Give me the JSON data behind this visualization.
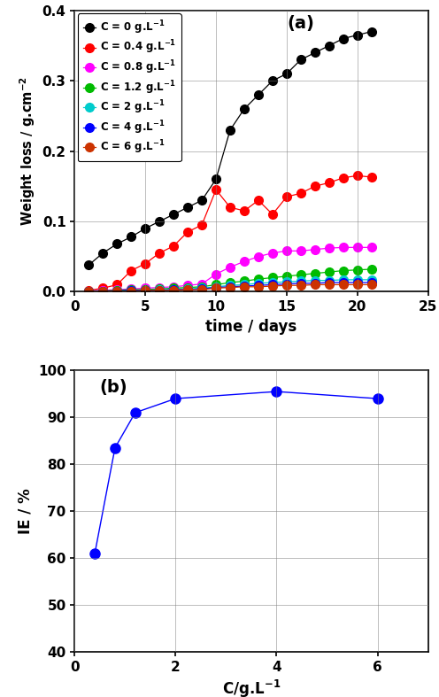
{
  "plot_a": {
    "title": "(a)",
    "xlabel": "time / days",
    "ylabel": "Weight loss / g.cm$^{-2}$",
    "xlim": [
      0,
      25
    ],
    "ylim": [
      0,
      0.4
    ],
    "yticks": [
      0.0,
      0.1,
      0.2,
      0.3,
      0.4
    ],
    "xticks": [
      0,
      5,
      10,
      15,
      20,
      25
    ],
    "series": [
      {
        "label": "C = 0 g.L$^{-1}$",
        "color": "#000000",
        "x": [
          1,
          2,
          3,
          4,
          5,
          6,
          7,
          8,
          9,
          10,
          11,
          12,
          13,
          14,
          15,
          16,
          17,
          18,
          19,
          20,
          21
        ],
        "y": [
          0.038,
          0.055,
          0.068,
          0.078,
          0.09,
          0.1,
          0.11,
          0.12,
          0.13,
          0.16,
          0.23,
          0.26,
          0.28,
          0.3,
          0.31,
          0.33,
          0.34,
          0.35,
          0.36,
          0.365,
          0.37
        ]
      },
      {
        "label": "C = 0.4 g.L$^{-1}$",
        "color": "#ff0000",
        "x": [
          1,
          2,
          3,
          4,
          5,
          6,
          7,
          8,
          9,
          10,
          11,
          12,
          13,
          14,
          15,
          16,
          17,
          18,
          19,
          20,
          21
        ],
        "y": [
          0.002,
          0.005,
          0.01,
          0.03,
          0.04,
          0.055,
          0.065,
          0.085,
          0.095,
          0.145,
          0.12,
          0.115,
          0.13,
          0.11,
          0.135,
          0.14,
          0.15,
          0.155,
          0.162,
          0.165,
          0.163
        ]
      },
      {
        "label": "C = 0.8 g.L$^{-1}$",
        "color": "#ff00ff",
        "x": [
          1,
          2,
          3,
          4,
          5,
          6,
          7,
          8,
          9,
          10,
          11,
          12,
          13,
          14,
          15,
          16,
          17,
          18,
          19,
          20,
          21
        ],
        "y": [
          0.001,
          0.002,
          0.003,
          0.004,
          0.005,
          0.006,
          0.007,
          0.009,
          0.011,
          0.025,
          0.035,
          0.043,
          0.05,
          0.055,
          0.058,
          0.058,
          0.06,
          0.062,
          0.063,
          0.063,
          0.063
        ]
      },
      {
        "label": "C = 1.2 g.L$^{-1}$",
        "color": "#00bb00",
        "x": [
          1,
          2,
          3,
          4,
          5,
          6,
          7,
          8,
          9,
          10,
          11,
          12,
          13,
          14,
          15,
          16,
          17,
          18,
          19,
          20,
          21
        ],
        "y": [
          0.001,
          0.001,
          0.002,
          0.003,
          0.003,
          0.004,
          0.005,
          0.006,
          0.007,
          0.01,
          0.013,
          0.015,
          0.018,
          0.02,
          0.022,
          0.024,
          0.026,
          0.028,
          0.03,
          0.031,
          0.032
        ]
      },
      {
        "label": "C = 2 g.L$^{-1}$",
        "color": "#00cccc",
        "x": [
          1,
          2,
          3,
          4,
          5,
          6,
          7,
          8,
          9,
          10,
          11,
          12,
          13,
          14,
          15,
          16,
          17,
          18,
          19,
          20,
          21
        ],
        "y": [
          0.001,
          0.001,
          0.001,
          0.002,
          0.002,
          0.003,
          0.003,
          0.004,
          0.005,
          0.007,
          0.009,
          0.01,
          0.012,
          0.013,
          0.014,
          0.015,
          0.016,
          0.016,
          0.017,
          0.017,
          0.017
        ]
      },
      {
        "label": "C = 4 g.L$^{-1}$",
        "color": "#0000ff",
        "x": [
          1,
          2,
          3,
          4,
          5,
          6,
          7,
          8,
          9,
          10,
          11,
          12,
          13,
          14,
          15,
          16,
          17,
          18,
          19,
          20,
          21
        ],
        "y": [
          0.001,
          0.001,
          0.001,
          0.002,
          0.002,
          0.002,
          0.003,
          0.003,
          0.004,
          0.006,
          0.007,
          0.008,
          0.009,
          0.01,
          0.011,
          0.012,
          0.012,
          0.013,
          0.013,
          0.013,
          0.013
        ]
      },
      {
        "label": "C = 6 g.L$^{-1}$",
        "color": "#cc3300",
        "x": [
          1,
          2,
          3,
          4,
          5,
          6,
          7,
          8,
          9,
          10,
          11,
          12,
          13,
          14,
          15,
          16,
          17,
          18,
          19,
          20,
          21
        ],
        "y": [
          0.001,
          0.001,
          0.001,
          0.001,
          0.002,
          0.002,
          0.002,
          0.003,
          0.003,
          0.005,
          0.006,
          0.007,
          0.007,
          0.008,
          0.009,
          0.009,
          0.01,
          0.01,
          0.01,
          0.01,
          0.01
        ]
      }
    ]
  },
  "plot_b": {
    "title": "(b)",
    "xlabel": "C/g.L$^{-1}$",
    "ylabel": "IE / %",
    "xlim": [
      0,
      7
    ],
    "ylim": [
      40,
      100
    ],
    "yticks": [
      40,
      50,
      60,
      70,
      80,
      90,
      100
    ],
    "xticks": [
      0,
      2,
      4,
      6
    ],
    "color": "#0000ff",
    "x": [
      0.4,
      0.8,
      1.2,
      2.0,
      4.0,
      6.0
    ],
    "y": [
      61.0,
      83.5,
      91.0,
      94.0,
      95.5,
      94.0
    ]
  },
  "figsize": [
    4.96,
    7.87
  ],
  "dpi": 100
}
